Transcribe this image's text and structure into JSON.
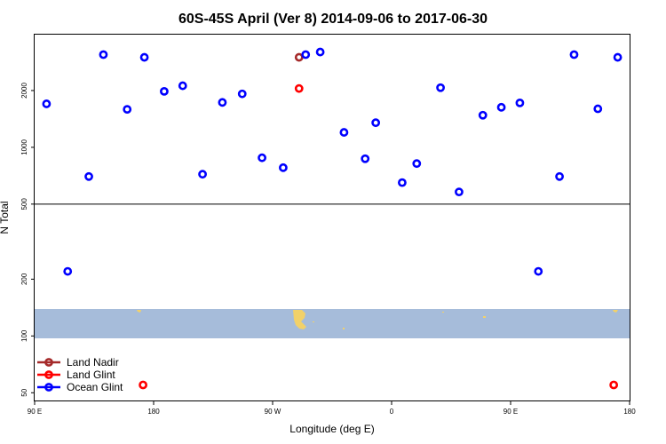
{
  "chart_data": {
    "type": "scatter",
    "title": "60S-45S April (Ver 8)   2014-09-06 to 2017-06-30",
    "xlabel": "Longitude (deg E)",
    "ylabel": "N Total",
    "x_ticks": [
      {
        "value": 90,
        "label": "90 E"
      },
      {
        "value": 180,
        "label": "180"
      },
      {
        "value": 270,
        "label": "90 W"
      },
      {
        "value": 360,
        "label": "0"
      },
      {
        "value": 450,
        "label": "90 E"
      },
      {
        "value": 540,
        "label": "180"
      }
    ],
    "xlim": [
      90,
      540
    ],
    "y_scale": "log",
    "ylim": [
      45,
      4000
    ],
    "y_ticks": [
      50,
      100,
      200,
      500,
      1000,
      2000
    ],
    "reference_line": 500,
    "series": [
      {
        "name": "Land Nadir",
        "color": "#a52a2a",
        "points": [
          {
            "x": 290,
            "y": 3000
          }
        ]
      },
      {
        "name": "Land Glint",
        "color": "#ff0000",
        "points": [
          {
            "x": 290,
            "y": 2050
          },
          {
            "x": 172,
            "y": 55
          },
          {
            "x": 528,
            "y": 55
          }
        ]
      },
      {
        "name": "Ocean Glint",
        "color": "#0000ff",
        "points": [
          {
            "x": 99,
            "y": 1700
          },
          {
            "x": 115,
            "y": 220
          },
          {
            "x": 131,
            "y": 700
          },
          {
            "x": 142,
            "y": 3100
          },
          {
            "x": 160,
            "y": 1590
          },
          {
            "x": 173,
            "y": 3000
          },
          {
            "x": 188,
            "y": 1980
          },
          {
            "x": 202,
            "y": 2120
          },
          {
            "x": 217,
            "y": 720
          },
          {
            "x": 232,
            "y": 1730
          },
          {
            "x": 247,
            "y": 1920
          },
          {
            "x": 262,
            "y": 880
          },
          {
            "x": 278,
            "y": 780
          },
          {
            "x": 295,
            "y": 3100
          },
          {
            "x": 306,
            "y": 3200
          },
          {
            "x": 324,
            "y": 1200
          },
          {
            "x": 340,
            "y": 870
          },
          {
            "x": 348,
            "y": 1350
          },
          {
            "x": 368,
            "y": 650
          },
          {
            "x": 379,
            "y": 820
          },
          {
            "x": 397,
            "y": 2070
          },
          {
            "x": 411,
            "y": 580
          },
          {
            "x": 429,
            "y": 1480
          },
          {
            "x": 443,
            "y": 1630
          },
          {
            "x": 457,
            "y": 1720
          },
          {
            "x": 471,
            "y": 220
          },
          {
            "x": 487,
            "y": 700
          },
          {
            "x": 498,
            "y": 3100
          },
          {
            "x": 516,
            "y": 1600
          },
          {
            "x": 531,
            "y": 3000
          }
        ]
      }
    ],
    "legend_position": "bottom-left",
    "map_strip": {
      "ocean_color": "#a6bcda",
      "land_color": "#f2d16a"
    }
  }
}
